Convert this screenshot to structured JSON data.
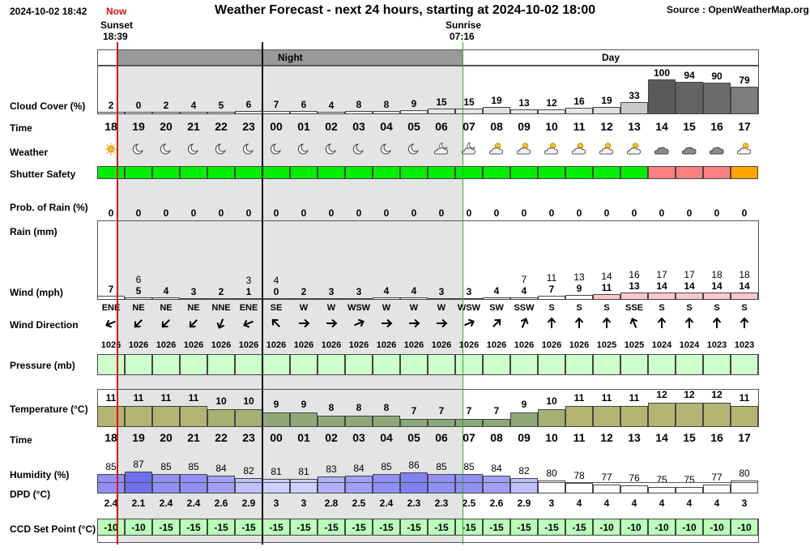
{
  "header": {
    "datetime": "2024-10-02 18:42",
    "now_label": "Now",
    "title": "Weather Forecast - next 24 hours, starting at 2024-10-02 18:00",
    "source": "Source : OpenWeatherMap.org",
    "sunset_label": "Sunset",
    "sunset_time": "18:39",
    "sunrise_label": "Sunrise",
    "sunrise_time": "07:16"
  },
  "periods": {
    "night": "Night",
    "day": "Day"
  },
  "labels": {
    "cloud": "Cloud Cover (%)",
    "time": "Time",
    "weather": "Weather",
    "shutter": "Shutter Safety",
    "prob_rain": "Prob. of Rain (%)",
    "rain": "Rain (mm)",
    "wind": "Wind (mph)",
    "wind_dir": "Wind Direction",
    "pressure": "Pressure (mb)",
    "temperature": "Temperature (°C)",
    "time2": "Time",
    "humidity": "Humidity (%)",
    "dpd": "DPD (°C)",
    "ccd": "CCD Set Point (°C)"
  },
  "colors": {
    "night_bg": "#e4e4e4",
    "night_header": "#999999",
    "now_line": "#e01010",
    "sunrise_line": "#33aa33",
    "safe": "#00ee00",
    "caution": "#ff8080",
    "warning": "#ffa500",
    "pressure_fill": "#ccffcc",
    "ccd_fill": "#bbffbb",
    "wind_fill": "#ffc8c8"
  },
  "hours": [
    "18",
    "19",
    "20",
    "21",
    "22",
    "23",
    "00",
    "01",
    "02",
    "03",
    "04",
    "05",
    "06",
    "07",
    "08",
    "09",
    "10",
    "11",
    "12",
    "13",
    "14",
    "15",
    "16",
    "17"
  ],
  "cloud_cover": [
    2,
    0,
    2,
    4,
    5,
    6,
    7,
    6,
    4,
    8,
    8,
    9,
    15,
    15,
    19,
    13,
    12,
    16,
    19,
    33,
    100,
    94,
    90,
    79
  ],
  "weather_icons": [
    "sun-icon",
    "moon-icon",
    "moon-icon",
    "moon-icon",
    "moon-icon",
    "moon-icon",
    "moon-icon",
    "moon-icon",
    "moon-icon",
    "moon-icon",
    "moon-icon",
    "moon-icon",
    "moon-cloud-icon",
    "moon-cloud-icon",
    "sun-cloud-icon",
    "sun-cloud-icon",
    "sun-cloud-icon",
    "sun-cloud-icon",
    "sun-cloud-icon",
    "sun-cloud-icon",
    "cloud-icon",
    "cloud-icon",
    "cloud-icon",
    "sun-cloud-icon"
  ],
  "shutter_safety": [
    "safe",
    "safe",
    "safe",
    "safe",
    "safe",
    "safe",
    "safe",
    "safe",
    "safe",
    "safe",
    "safe",
    "safe",
    "safe",
    "safe",
    "safe",
    "safe",
    "safe",
    "safe",
    "safe",
    "safe",
    "caution",
    "caution",
    "caution",
    "warning"
  ],
  "prob_rain": [
    0,
    0,
    0,
    0,
    0,
    0,
    0,
    0,
    0,
    0,
    0,
    0,
    0,
    0,
    0,
    0,
    0,
    0,
    0,
    0,
    0,
    0,
    0,
    0
  ],
  "wind_gust": [
    "",
    "6",
    "",
    "",
    "",
    "3",
    "4",
    "",
    "",
    "",
    "",
    "",
    "",
    "",
    "",
    "7",
    "11",
    "13",
    "14",
    "16",
    "17",
    "17",
    "18",
    "18"
  ],
  "wind_speed": [
    7,
    5,
    4,
    3,
    2,
    1,
    0,
    2,
    3,
    3,
    4,
    4,
    3,
    3,
    4,
    4,
    7,
    9,
    11,
    13,
    14,
    14,
    14,
    14
  ],
  "wind_dir": [
    "ENE",
    "NE",
    "NE",
    "NE",
    "NNE",
    "ENE",
    "SE",
    "W",
    "W",
    "WSW",
    "W",
    "W",
    "W",
    "WSW",
    "SW",
    "SSW",
    "S",
    "S",
    "S",
    "SSE",
    "S",
    "S",
    "S",
    "S"
  ],
  "pressure": [
    1026,
    1026,
    1026,
    1026,
    1026,
    1026,
    1026,
    1026,
    1026,
    1026,
    1026,
    1026,
    1026,
    1026,
    1026,
    1026,
    1026,
    1026,
    1025,
    1025,
    1024,
    1024,
    1023,
    1023
  ],
  "temperature": [
    11,
    11,
    11,
    11,
    10,
    10,
    9,
    9,
    8,
    8,
    8,
    7,
    7,
    7,
    7,
    9,
    10,
    11,
    11,
    11,
    12,
    12,
    12,
    11
  ],
  "humidity": [
    85,
    87,
    85,
    85,
    84,
    82,
    81,
    81,
    83,
    84,
    85,
    86,
    85,
    85,
    84,
    82,
    80,
    78,
    77,
    76,
    75,
    75,
    77,
    80
  ],
  "dpd": [
    "2.4",
    "2.1",
    "2.4",
    "2.4",
    "2.6",
    "2.9",
    "3",
    "3",
    "2.8",
    "2.5",
    "2.4",
    "2.3",
    "2.3",
    "2.5",
    "2.6",
    "2.9",
    "3",
    "4",
    "4",
    "4",
    "4",
    "4",
    "4",
    "3"
  ],
  "ccd_set_point": [
    -10,
    -10,
    -15,
    -15,
    -15,
    -15,
    -15,
    -15,
    -15,
    -15,
    -15,
    -15,
    -15,
    -15,
    -15,
    -15,
    -15,
    -15,
    -10,
    -10,
    -10,
    -10,
    -10,
    -10
  ]
}
